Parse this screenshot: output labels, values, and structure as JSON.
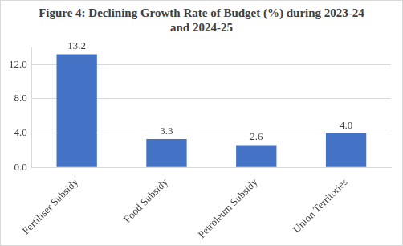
{
  "chart_data": {
    "type": "bar",
    "title": "Figure 4: Declining Growth Rate of Budget (%) during 2023-24 and 2024-25",
    "categories": [
      "Fertiliser Subsidy",
      "Food Subsidy",
      "Petroleum Subsidy",
      "Union Territories"
    ],
    "values": [
      13.2,
      3.3,
      2.6,
      4.0
    ],
    "value_labels": [
      "13.2",
      "3.3",
      "2.6",
      "4.0"
    ],
    "color": "#4472c4",
    "ylim": [
      0,
      14
    ],
    "yticks": [
      {
        "value": 0,
        "label": "0.0"
      },
      {
        "value": 4,
        "label": "4.0"
      },
      {
        "value": 8,
        "label": "8.0"
      },
      {
        "value": 12,
        "label": "12.0"
      }
    ],
    "grid": true,
    "data_labels": true
  }
}
